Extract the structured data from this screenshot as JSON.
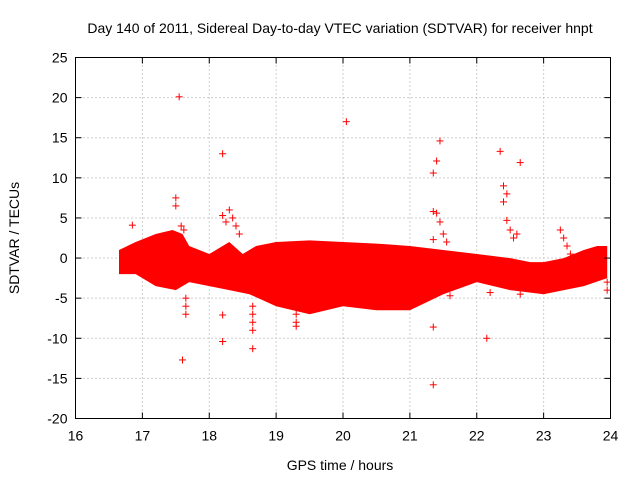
{
  "chart_data": {
    "type": "scatter",
    "title": "Day 140 of 2011, Sidereal Day-to-day VTEC variation (SDTVAR) for receiver hnpt",
    "xlabel": "GPS time / hours",
    "ylabel": "SDTVAR / TECUs",
    "xlim": [
      16,
      24
    ],
    "ylim": [
      -20,
      25
    ],
    "xticks": [
      16,
      17,
      18,
      19,
      20,
      21,
      22,
      23,
      24
    ],
    "yticks": [
      -20,
      -15,
      -10,
      -5,
      0,
      5,
      10,
      15,
      20,
      25
    ],
    "grid": true,
    "marker": "+",
    "marker_color": "#ff0000",
    "band": {
      "description": "dense cloud of points",
      "upper": [
        [
          16.65,
          1.0
        ],
        [
          16.9,
          2.0
        ],
        [
          17.2,
          3.0
        ],
        [
          17.45,
          3.5
        ],
        [
          17.6,
          3.0
        ],
        [
          17.7,
          1.5
        ],
        [
          18.0,
          0.5
        ],
        [
          18.3,
          2.0
        ],
        [
          18.5,
          0.5
        ],
        [
          18.7,
          1.5
        ],
        [
          19.0,
          2.0
        ],
        [
          19.5,
          2.2
        ],
        [
          20.0,
          2.0
        ],
        [
          20.5,
          1.8
        ],
        [
          21.0,
          1.5
        ],
        [
          21.5,
          1.0
        ],
        [
          22.0,
          0.5
        ],
        [
          22.5,
          0.0
        ],
        [
          22.8,
          -0.5
        ],
        [
          23.0,
          -0.5
        ],
        [
          23.3,
          0.0
        ],
        [
          23.6,
          1.0
        ],
        [
          23.8,
          1.5
        ],
        [
          23.95,
          1.5
        ]
      ],
      "lower": [
        [
          23.95,
          -2.5
        ],
        [
          23.6,
          -3.5
        ],
        [
          23.0,
          -4.5
        ],
        [
          22.5,
          -4.0
        ],
        [
          22.0,
          -3.0
        ],
        [
          21.5,
          -4.5
        ],
        [
          21.0,
          -6.5
        ],
        [
          20.5,
          -6.5
        ],
        [
          20.0,
          -6.0
        ],
        [
          19.5,
          -7.0
        ],
        [
          19.0,
          -6.0
        ],
        [
          18.6,
          -4.5
        ],
        [
          18.3,
          -4.0
        ],
        [
          18.0,
          -3.5
        ],
        [
          17.7,
          -3.0
        ],
        [
          17.5,
          -4.0
        ],
        [
          17.2,
          -3.5
        ],
        [
          16.9,
          -2.0
        ],
        [
          16.65,
          -2.0
        ]
      ]
    },
    "points": [
      [
        16.85,
        4.1
      ],
      [
        17.5,
        7.5
      ],
      [
        17.5,
        6.5
      ],
      [
        17.55,
        20.1
      ],
      [
        17.58,
        4.0
      ],
      [
        17.62,
        3.5
      ],
      [
        17.65,
        -5.0
      ],
      [
        17.65,
        -6.0
      ],
      [
        17.65,
        -7.0
      ],
      [
        17.6,
        -12.7
      ],
      [
        18.2,
        13.0
      ],
      [
        18.2,
        5.3
      ],
      [
        18.25,
        4.5
      ],
      [
        18.2,
        -7.1
      ],
      [
        18.2,
        -10.4
      ],
      [
        18.3,
        6.0
      ],
      [
        18.35,
        5.0
      ],
      [
        18.4,
        4.0
      ],
      [
        18.45,
        3.0
      ],
      [
        18.65,
        -6.0
      ],
      [
        18.65,
        -7.0
      ],
      [
        18.65,
        -8.0
      ],
      [
        18.65,
        -9.0
      ],
      [
        18.65,
        -11.3
      ],
      [
        19.3,
        -7.0
      ],
      [
        19.3,
        -8.0
      ],
      [
        19.3,
        -8.5
      ],
      [
        20.05,
        17.0
      ],
      [
        21.35,
        10.6
      ],
      [
        21.4,
        12.1
      ],
      [
        21.45,
        14.6
      ],
      [
        21.35,
        5.8
      ],
      [
        21.4,
        5.6
      ],
      [
        21.45,
        4.5
      ],
      [
        21.5,
        3.0
      ],
      [
        21.55,
        2.0
      ],
      [
        21.35,
        2.3
      ],
      [
        21.35,
        -8.6
      ],
      [
        21.35,
        -15.8
      ],
      [
        21.6,
        -4.7
      ],
      [
        22.2,
        -4.3
      ],
      [
        22.15,
        -10.0
      ],
      [
        22.35,
        13.3
      ],
      [
        22.4,
        9.0
      ],
      [
        22.45,
        8.0
      ],
      [
        22.4,
        7.0
      ],
      [
        22.45,
        4.7
      ],
      [
        22.5,
        3.5
      ],
      [
        22.55,
        2.5
      ],
      [
        22.6,
        3.0
      ],
      [
        22.65,
        11.9
      ],
      [
        22.65,
        -4.5
      ],
      [
        23.25,
        3.5
      ],
      [
        23.3,
        2.5
      ],
      [
        23.35,
        1.5
      ],
      [
        23.4,
        0.5
      ],
      [
        23.5,
        -0.5
      ],
      [
        23.95,
        -3.0
      ],
      [
        23.95,
        -4.0
      ]
    ]
  }
}
